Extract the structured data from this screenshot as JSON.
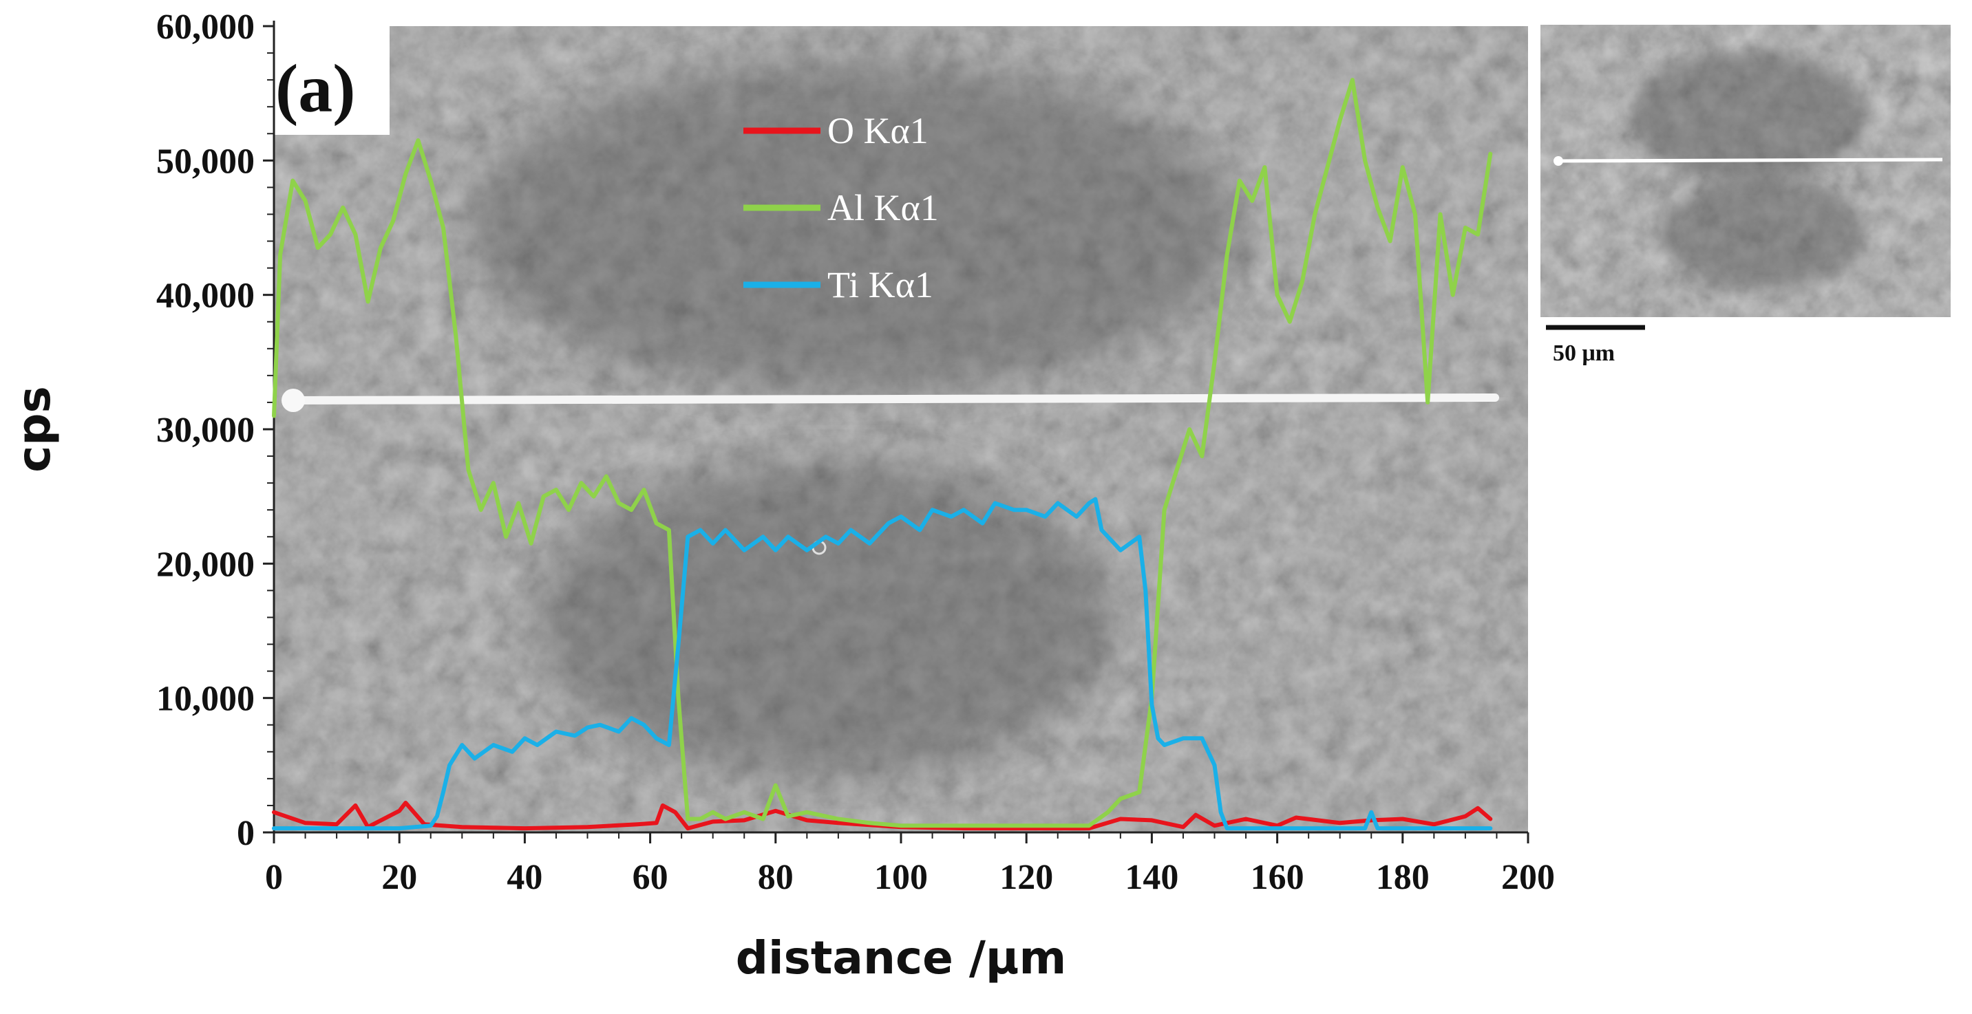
{
  "panel_label": "(a)",
  "inset": {
    "scale_bar_label": "50 μm"
  },
  "colors": {
    "O": "#e8141c",
    "Al": "#8fd24a",
    "Ti": "#1ab0e8",
    "sem_background": "#8f8f8f",
    "scan_line": "#f2f2f2"
  },
  "chart_data": {
    "type": "line",
    "xlabel": "distance /μm",
    "ylabel": "cps",
    "xlim": [
      0,
      200
    ],
    "ylim": [
      0,
      60000
    ],
    "x_ticks": [
      "0",
      "20",
      "40",
      "60",
      "80",
      "100",
      "120",
      "140",
      "160",
      "180",
      "200"
    ],
    "y_ticks": [
      "0",
      "10,000",
      "20,000",
      "30,000",
      "40,000",
      "50,000",
      "60,000"
    ],
    "legend_position": "upper-center",
    "grid": false,
    "background": "SEM micrograph with line-scan path",
    "series": [
      {
        "name": "O Kα1",
        "color": "#e8141c",
        "x": [
          0,
          5,
          10,
          13,
          15,
          20,
          21,
          24,
          30,
          40,
          50,
          58,
          61,
          62,
          64,
          66,
          70,
          75,
          80,
          85,
          90,
          100,
          110,
          120,
          130,
          135,
          140,
          145,
          147,
          150,
          155,
          160,
          163,
          170,
          175,
          180,
          185,
          190,
          192,
          194
        ],
        "y": [
          1500,
          700,
          600,
          2000,
          400,
          1600,
          2200,
          600,
          400,
          300,
          400,
          600,
          700,
          2000,
          1500,
          300,
          800,
          900,
          1600,
          900,
          700,
          400,
          300,
          300,
          300,
          1000,
          900,
          400,
          1300,
          500,
          1000,
          500,
          1100,
          700,
          900,
          1000,
          600,
          1200,
          1800,
          1000
        ]
      },
      {
        "name": "Al Kα1",
        "color": "#8fd24a",
        "x": [
          0,
          1,
          3,
          5,
          7,
          9,
          11,
          13,
          15,
          17,
          19,
          21,
          23,
          25,
          27,
          29,
          31,
          33,
          35,
          37,
          39,
          41,
          43,
          45,
          47,
          49,
          51,
          53,
          55,
          57,
          59,
          61,
          63,
          64.5,
          66,
          68,
          70,
          72,
          75,
          78,
          80,
          82,
          85,
          90,
          95,
          100,
          110,
          120,
          130,
          133,
          135,
          138,
          140,
          142,
          144,
          146,
          148,
          150,
          152,
          154,
          156,
          158,
          160,
          162,
          164,
          166,
          168,
          170,
          172,
          174,
          176,
          178,
          180,
          182,
          184,
          186,
          188,
          190,
          192,
          194
        ],
        "y": [
          31000,
          43000,
          48500,
          47000,
          43500,
          44500,
          46500,
          44500,
          39500,
          43500,
          45500,
          49000,
          51500,
          48500,
          45000,
          37000,
          27000,
          24000,
          26000,
          22000,
          24500,
          21500,
          25000,
          25500,
          24000,
          26000,
          25000,
          26500,
          24500,
          24000,
          25500,
          23000,
          22500,
          10000,
          1000,
          1000,
          1500,
          1000,
          1500,
          1000,
          3500,
          1200,
          1500,
          1000,
          700,
          500,
          500,
          500,
          500,
          1500,
          2500,
          3000,
          10000,
          24000,
          27000,
          30000,
          28000,
          35000,
          43000,
          48500,
          47000,
          49500,
          40000,
          38000,
          41000,
          46000,
          49500,
          53000,
          56000,
          50000,
          46500,
          44000,
          49500,
          46000,
          32000,
          46000,
          40000,
          45000,
          44500,
          50500
        ]
      },
      {
        "name": "Ti Kα1",
        "color": "#1ab0e8",
        "x": [
          0,
          10,
          20,
          25,
          26,
          27,
          28,
          30,
          32,
          35,
          38,
          40,
          42,
          45,
          48,
          50,
          52,
          55,
          57,
          59,
          61,
          63,
          64.5,
          66,
          68,
          70,
          72,
          75,
          78,
          80,
          82,
          85,
          88,
          90,
          92,
          95,
          98,
          100,
          103,
          105,
          108,
          110,
          113,
          115,
          118,
          120,
          123,
          125,
          128,
          130,
          131,
          132,
          135,
          138,
          139,
          140,
          141,
          142,
          145,
          148,
          150,
          151,
          152,
          155,
          160,
          170,
          174,
          175,
          176,
          180,
          190,
          194
        ],
        "y": [
          300,
          300,
          300,
          500,
          1200,
          3000,
          5000,
          6500,
          5500,
          6500,
          6000,
          7000,
          6500,
          7500,
          7200,
          7800,
          8000,
          7500,
          8500,
          8000,
          7000,
          6500,
          14000,
          22000,
          22500,
          21500,
          22500,
          21000,
          22000,
          21000,
          22000,
          21000,
          22000,
          21500,
          22500,
          21500,
          23000,
          23500,
          22500,
          24000,
          23500,
          24000,
          23000,
          24500,
          24000,
          24000,
          23500,
          24500,
          23500,
          24500,
          24800,
          22500,
          21000,
          22000,
          18000,
          9500,
          7000,
          6500,
          7000,
          7000,
          5000,
          1500,
          300,
          300,
          300,
          300,
          300,
          1500,
          300,
          300,
          300,
          300
        ]
      }
    ]
  }
}
